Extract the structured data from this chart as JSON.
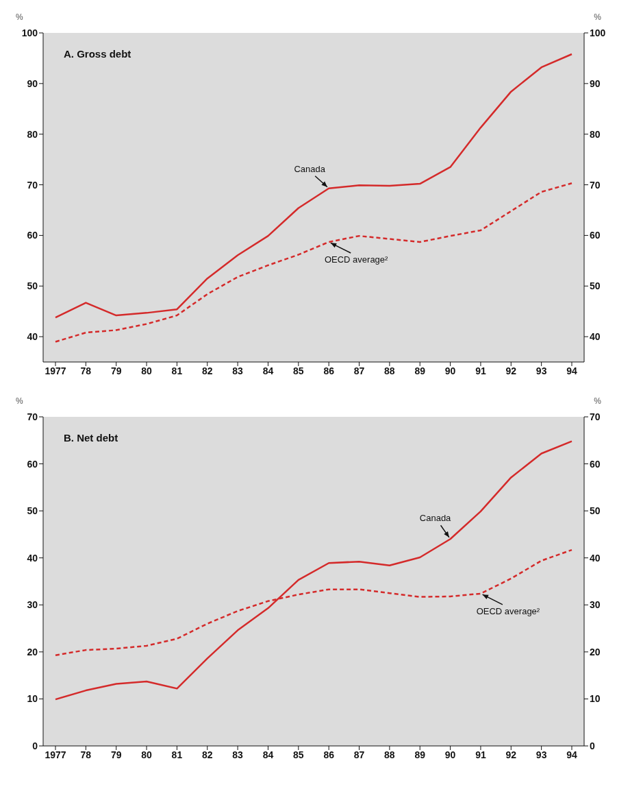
{
  "chart_data": [
    {
      "type": "line",
      "title": "A. Gross debt",
      "ylabel": "%",
      "y2label": "%",
      "categories": [
        "1977",
        "78",
        "79",
        "80",
        "81",
        "82",
        "83",
        "84",
        "85",
        "86",
        "87",
        "88",
        "89",
        "90",
        "91",
        "92",
        "93",
        "94"
      ],
      "series": [
        {
          "name": "Canada",
          "color": "#d42a2a",
          "line_style": "solid",
          "values": [
            43.8,
            46.7,
            44.2,
            44.7,
            45.4,
            51.5,
            56.1,
            59.9,
            65.4,
            69.3,
            69.9,
            69.8,
            70.2,
            73.5,
            81.3,
            88.4,
            93.2,
            95.8
          ]
        },
        {
          "name": "OECD average²",
          "color": "#d42a2a",
          "line_style": "dashed",
          "values": [
            39.0,
            40.8,
            41.3,
            42.5,
            44.2,
            48.4,
            51.8,
            54.1,
            56.2,
            58.7,
            59.9,
            59.3,
            58.7,
            59.9,
            61.0,
            64.8,
            68.6,
            70.3
          ]
        }
      ],
      "ylim": [
        35,
        100
      ],
      "yticks": [
        40,
        50,
        60,
        70,
        80,
        90,
        100
      ],
      "y2lim": [
        35,
        100
      ],
      "y2ticks": [
        40,
        50,
        60,
        70,
        80,
        90,
        100
      ],
      "grid": false,
      "legend": false,
      "marker": "none"
    },
    {
      "type": "line",
      "title": "B. Net debt",
      "ylabel": "%",
      "y2label": "%",
      "categories": [
        "1977",
        "78",
        "79",
        "80",
        "81",
        "82",
        "83",
        "84",
        "85",
        "86",
        "87",
        "88",
        "89",
        "90",
        "91",
        "92",
        "93",
        "94"
      ],
      "series": [
        {
          "name": "Canada",
          "color": "#d42a2a",
          "line_style": "solid",
          "values": [
            9.9,
            11.8,
            13.2,
            13.7,
            12.2,
            18.6,
            24.6,
            29.3,
            35.3,
            38.9,
            39.2,
            38.4,
            40.1,
            44.0,
            49.9,
            57.1,
            62.2,
            64.8
          ]
        },
        {
          "name": "OECD average²",
          "color": "#d42a2a",
          "line_style": "dashed",
          "values": [
            19.3,
            20.4,
            20.7,
            21.3,
            22.8,
            26.0,
            28.7,
            30.8,
            32.2,
            33.3,
            33.3,
            32.5,
            31.7,
            31.8,
            32.4,
            35.6,
            39.4,
            41.7
          ]
        }
      ],
      "ylim": [
        0,
        70
      ],
      "yticks": [
        0,
        10,
        20,
        30,
        40,
        50,
        60,
        70
      ],
      "y2lim": [
        0,
        70
      ],
      "y2ticks": [
        0,
        10,
        20,
        30,
        40,
        50,
        60,
        70
      ],
      "grid": false,
      "legend": false,
      "marker": "none"
    }
  ]
}
